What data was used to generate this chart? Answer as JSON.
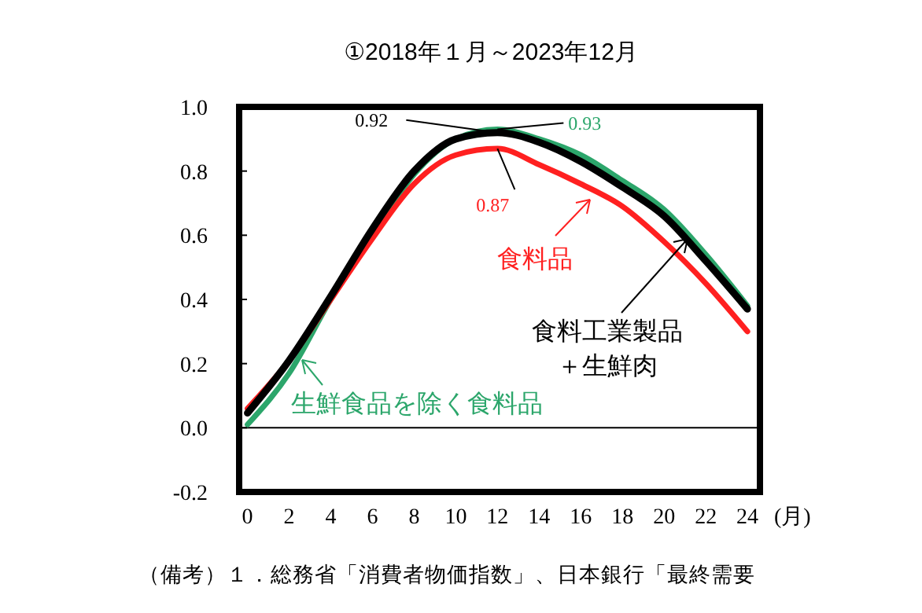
{
  "chart_data": {
    "type": "line",
    "title": "①2018年１月～2023年12月",
    "xlabel": "(月)",
    "x": [
      0,
      2,
      4,
      6,
      8,
      10,
      12,
      14,
      16,
      18,
      20,
      22,
      24
    ],
    "xlim": [
      -0.4,
      24.6
    ],
    "xticks": [
      0,
      2,
      4,
      6,
      8,
      10,
      12,
      14,
      16,
      18,
      20,
      22,
      24
    ],
    "ylim": [
      -0.2,
      1.0
    ],
    "yticks": [
      {
        "value": -0.2,
        "label": "-0.2"
      },
      {
        "value": 0,
        "label": "0.0"
      },
      {
        "value": 0.2,
        "label": "0.2"
      },
      {
        "value": 0.4,
        "label": "0.4"
      },
      {
        "value": 0.6,
        "label": "0.6"
      },
      {
        "value": 0.8,
        "label": "0.8"
      },
      {
        "value": 1,
        "label": "1.0"
      }
    ],
    "series": [
      {
        "name": "生鮮食品を除く食料品",
        "color": "#2ca66b",
        "values": [
          0.01,
          0.17,
          0.4,
          0.6,
          0.79,
          0.9,
          0.93,
          0.9,
          0.85,
          0.77,
          0.68,
          0.54,
          0.38
        ]
      },
      {
        "name": "食料品",
        "color": "#ff2020",
        "values": [
          0.06,
          0.21,
          0.4,
          0.59,
          0.76,
          0.85,
          0.87,
          0.82,
          0.76,
          0.69,
          0.58,
          0.45,
          0.3
        ]
      },
      {
        "name": "食料工業製品＋生鮮肉",
        "color": "#000000",
        "values": [
          0.046,
          0.21,
          0.41,
          0.62,
          0.8,
          0.9,
          0.92,
          0.89,
          0.83,
          0.75,
          0.66,
          0.52,
          0.37
        ]
      }
    ],
    "annotations": [
      "0.93",
      {
        "text": "0.87",
        "x": 12,
        "y": 0.87
      },
      {
        "text": "0.92",
        "x": 12,
        "y": 0.92
      },
      "（備考）１．総務省「消費者物価指数」、日本銀行「最終需要"
    ],
    "ref_lines": [
      {
        "axis": "y",
        "value": 0
      }
    ],
    "grid": false,
    "legend": "left",
    "marker": "none",
    "line_style": "solid"
  }
}
